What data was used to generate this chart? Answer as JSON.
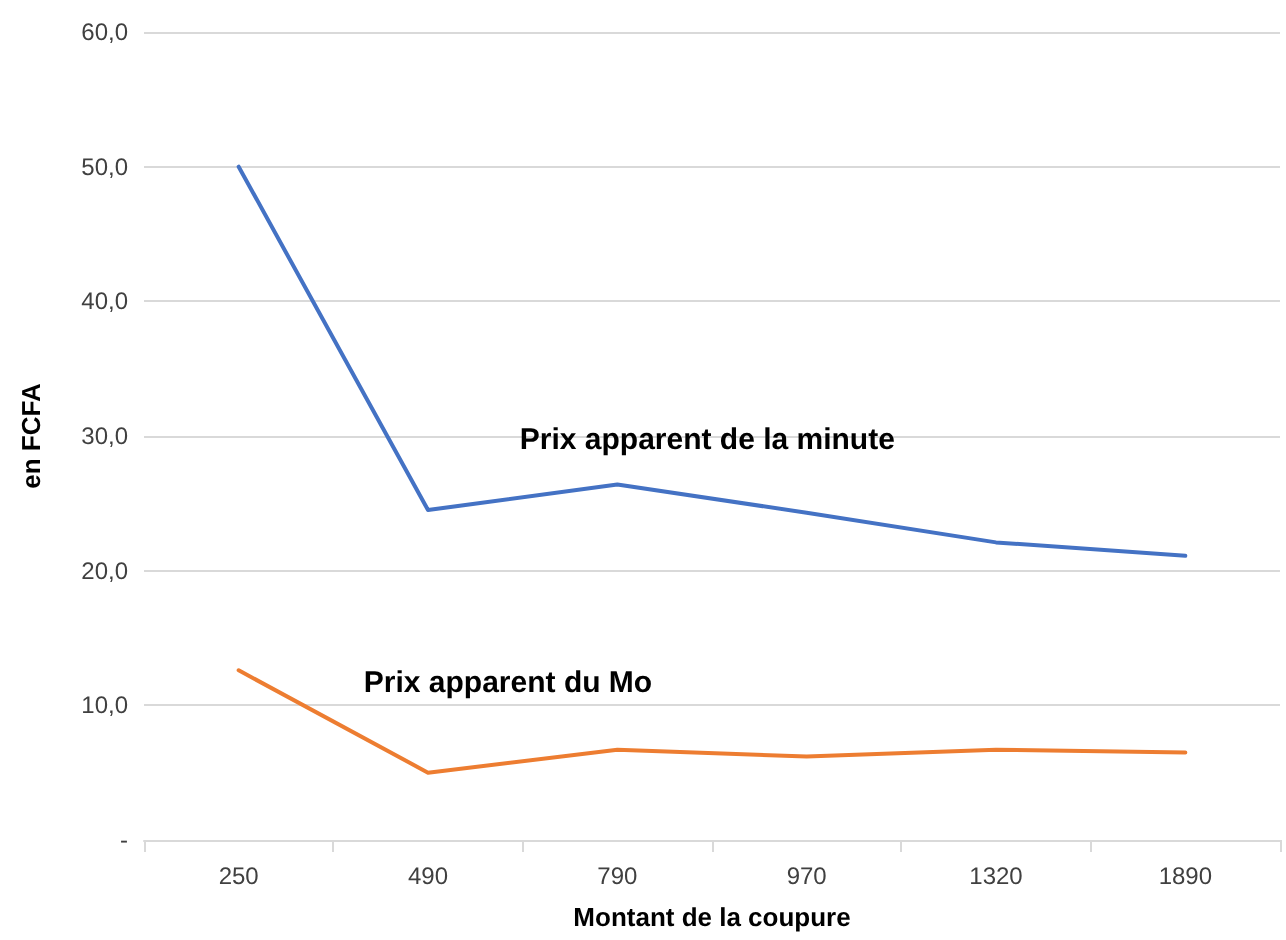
{
  "chart_data": {
    "type": "line",
    "xlabel": "Montant de la coupure",
    "ylabel": "en FCFA",
    "categories": [
      "250",
      "490",
      "790",
      "970",
      "1320",
      "1890"
    ],
    "series": [
      {
        "name": "Prix apparent de la minute",
        "color": "#4472c4",
        "values": [
          50.0,
          24.5,
          26.4,
          24.3,
          22.1,
          21.1
        ]
      },
      {
        "name": "Prix apparent du Mo",
        "color": "#ed7d31",
        "values": [
          12.6,
          5.0,
          6.7,
          6.2,
          6.7,
          6.5
        ]
      }
    ],
    "ylim": [
      0,
      60
    ],
    "yticks": [
      {
        "value": 0,
        "label": "-"
      },
      {
        "value": 10,
        "label": "10,0"
      },
      {
        "value": 20,
        "label": "20,0"
      },
      {
        "value": 30,
        "label": "30,0"
      },
      {
        "value": 40,
        "label": "40,0"
      },
      {
        "value": 50,
        "label": "50,0"
      },
      {
        "value": 60,
        "label": "60,0"
      }
    ],
    "grid": "y",
    "legend": false,
    "marker": "none",
    "line_style": "solid"
  }
}
